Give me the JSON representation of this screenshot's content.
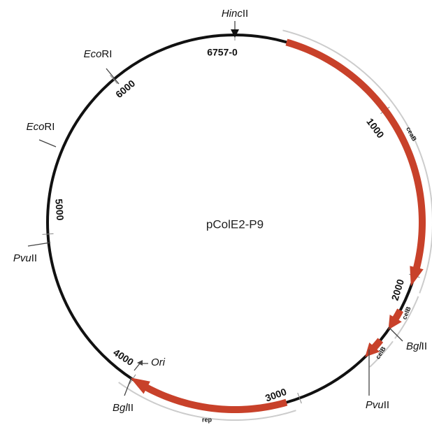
{
  "plasmid": {
    "name": "pColE2-P9",
    "positions": [
      "6757-0",
      "1000",
      "2000",
      "3000",
      "4000",
      "5000",
      "6000"
    ],
    "sites": [
      {
        "italic": "Hinc",
        "rest": "II"
      },
      {
        "italic": "Eco",
        "rest": "RI"
      },
      {
        "italic": "Eco",
        "rest": "RI"
      },
      {
        "italic": "Pvu",
        "rest": "II"
      },
      {
        "italic": "Bgl",
        "rest": "II"
      },
      {
        "italic": "Pvu",
        "rest": "II"
      },
      {
        "italic": "Bgl",
        "rest": "II"
      },
      {
        "italic": "Ori",
        "rest": ""
      }
    ],
    "genes": [
      "ceaB",
      "celB",
      "celB",
      "rep"
    ]
  }
}
